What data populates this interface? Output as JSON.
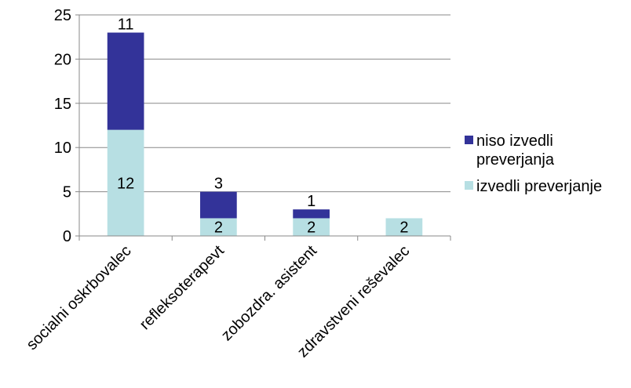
{
  "chart_data": {
    "type": "bar",
    "stacked": true,
    "title": "",
    "xlabel": "",
    "ylabel": "",
    "categories": [
      "socialni oskrbovalec",
      "refleksoterapevt",
      "zobozdra. asistent",
      "zdravstveni reševalec"
    ],
    "series": [
      {
        "name": "izvedli preverjanje",
        "values": [
          12,
          2,
          2,
          2
        ],
        "color": "#b7dfe3"
      },
      {
        "name": "niso izvedli preverjanja",
        "values": [
          11,
          3,
          1,
          0
        ],
        "color": "#333399"
      }
    ],
    "ylim": [
      0,
      25
    ],
    "yticks": [
      0,
      5,
      10,
      15,
      20,
      25
    ],
    "grid": true,
    "legend": {
      "position": "right",
      "entries": [
        {
          "lines": [
            "niso izvedli",
            "preverjanja"
          ],
          "color": "#333399"
        },
        {
          "lines": [
            "izvedli preverjanje"
          ],
          "color": "#b7dfe3"
        }
      ]
    }
  }
}
